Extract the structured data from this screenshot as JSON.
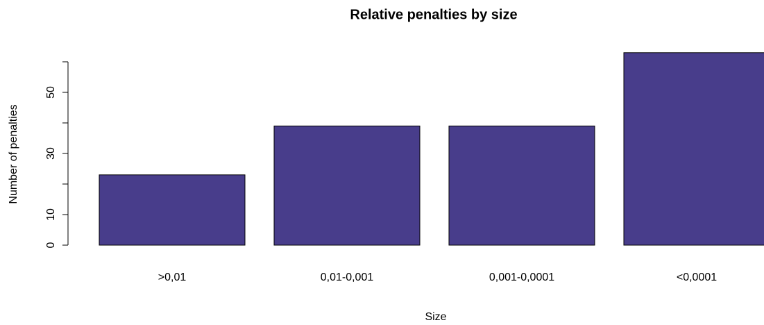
{
  "chart_data": {
    "type": "bar",
    "title": "Relative penalties by size",
    "xlabel": "Size",
    "ylabel": "Number of penalties",
    "categories": [
      ">0,01",
      "0,01-0,001",
      "0,001-0,0001",
      "<0,0001"
    ],
    "values": [
      23,
      39,
      39,
      63
    ],
    "color": "#483d8b",
    "ylim": [
      0,
      63
    ],
    "yticks": [
      0,
      10,
      {
        "value": 20,
        "label": null
      },
      30,
      {
        "value": 40,
        "label": null
      },
      50,
      {
        "value": 60,
        "label": null
      }
    ]
  }
}
